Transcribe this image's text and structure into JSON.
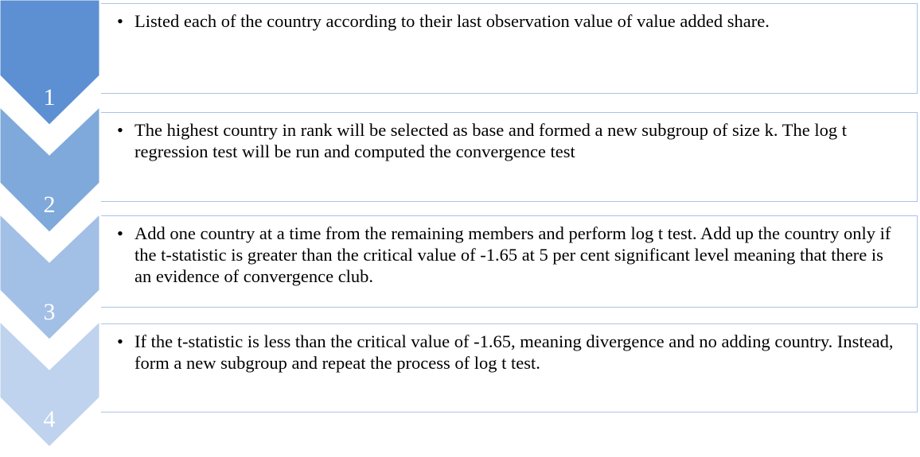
{
  "steps": [
    {
      "number": "1",
      "text": "Listed each of the country according to their last observation value of value added share."
    },
    {
      "number": "2",
      "text": "The highest country in rank will be selected as base and formed a new subgroup of size k. The log t regression test will be run and computed the convergence test"
    },
    {
      "number": "3",
      "text": "Add one country at a time from the remaining members and  perform log t test.  Add up the country only if the  t-statistic is greater than the critical value of -1.65 at 5 per cent significant level meaning that there is an evidence of convergence club."
    },
    {
      "number": "4",
      "text": "If the t-statistic is less than the critical value of -1.65, meaning divergence and no adding country. Instead, form a new subgroup and repeat the process of log t test."
    }
  ]
}
